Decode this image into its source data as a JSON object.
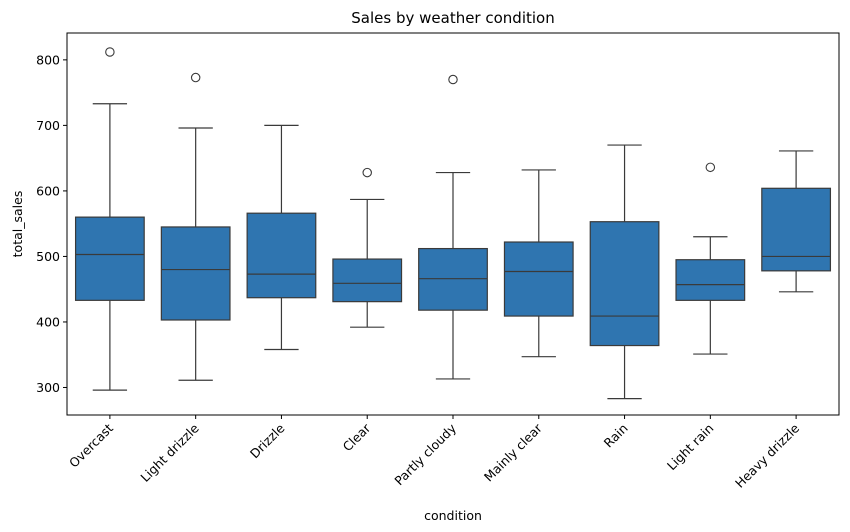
{
  "chart_data": {
    "type": "box",
    "title": "Sales by weather condition",
    "xlabel": "condition",
    "ylabel": "total_sales",
    "ylim": [
      258,
      841
    ],
    "yticks": [
      300,
      400,
      500,
      600,
      700,
      800
    ],
    "grid": false,
    "legend": "none",
    "box_color": "#2f75b0",
    "line_color": "#3a3a3a",
    "categories": [
      "Overcast",
      "Light drizzle",
      "Drizzle",
      "Clear",
      "Partly cloudy",
      "Mainly clear",
      "Rain",
      "Light rain",
      "Heavy drizzle"
    ],
    "boxes": [
      {
        "name": "Overcast",
        "whisker_low": 296,
        "q1": 433,
        "median": 503,
        "q3": 560,
        "whisker_high": 733,
        "outliers": [
          812
        ]
      },
      {
        "name": "Light drizzle",
        "whisker_low": 311,
        "q1": 403,
        "median": 480,
        "q3": 545,
        "whisker_high": 696,
        "outliers": [
          773
        ]
      },
      {
        "name": "Drizzle",
        "whisker_low": 358,
        "q1": 437,
        "median": 473,
        "q3": 566,
        "whisker_high": 700,
        "outliers": []
      },
      {
        "name": "Clear",
        "whisker_low": 392,
        "q1": 431,
        "median": 459,
        "q3": 496,
        "whisker_high": 587,
        "outliers": [
          628
        ]
      },
      {
        "name": "Partly cloudy",
        "whisker_low": 313,
        "q1": 418,
        "median": 466,
        "q3": 512,
        "whisker_high": 628,
        "outliers": [
          770
        ]
      },
      {
        "name": "Mainly clear",
        "whisker_low": 347,
        "q1": 409,
        "median": 477,
        "q3": 522,
        "whisker_high": 632,
        "outliers": []
      },
      {
        "name": "Rain",
        "whisker_low": 283,
        "q1": 364,
        "median": 409,
        "q3": 553,
        "whisker_high": 670,
        "outliers": []
      },
      {
        "name": "Light rain",
        "whisker_low": 351,
        "q1": 433,
        "median": 457,
        "q3": 495,
        "whisker_high": 530,
        "outliers": [
          636
        ]
      },
      {
        "name": "Heavy drizzle",
        "whisker_low": 446,
        "q1": 478,
        "median": 500,
        "q3": 604,
        "whisker_high": 661,
        "outliers": []
      }
    ]
  }
}
